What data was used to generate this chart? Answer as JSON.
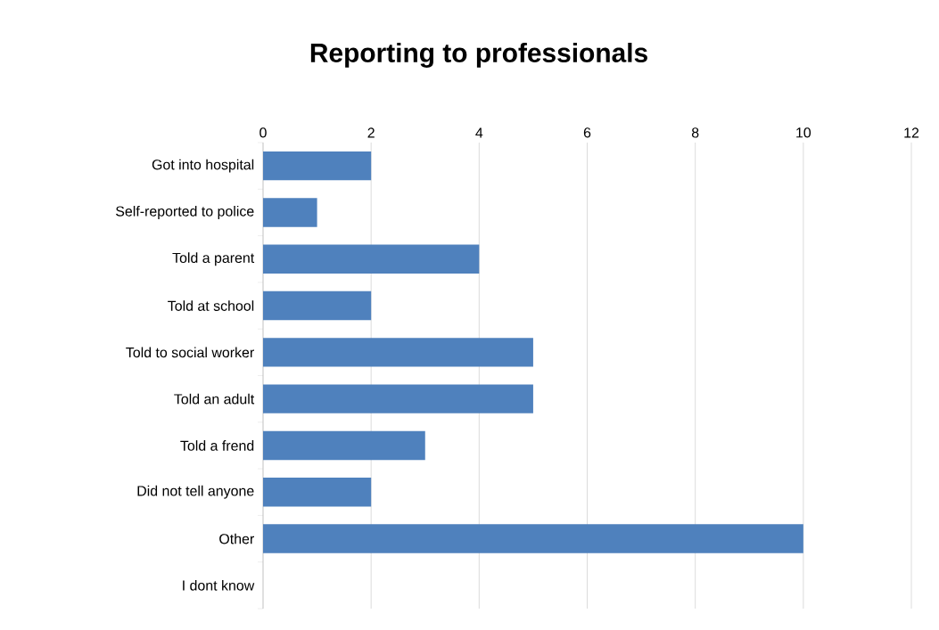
{
  "chart_data": {
    "type": "bar",
    "orientation": "horizontal",
    "title": "Reporting to professionals",
    "categories": [
      "Got into hospital",
      "Self-reported to police",
      "Told a parent",
      "Told at school",
      "Told to social worker",
      "Told an adult",
      "Told a frend",
      "Did not tell anyone",
      "Other",
      "I dont know"
    ],
    "values": [
      2,
      1,
      4,
      2,
      5,
      5,
      3,
      2,
      10,
      0
    ],
    "color": "#4f81bd",
    "xlim": [
      0,
      12
    ],
    "xticks": [
      0,
      2,
      4,
      6,
      8,
      10,
      12
    ],
    "grid": "x"
  }
}
